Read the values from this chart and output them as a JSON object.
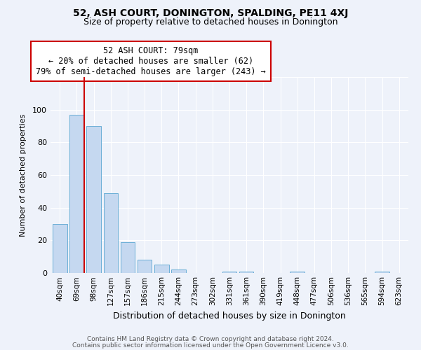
{
  "title": "52, ASH COURT, DONINGTON, SPALDING, PE11 4XJ",
  "subtitle": "Size of property relative to detached houses in Donington",
  "xlabel": "Distribution of detached houses by size in Donington",
  "ylabel": "Number of detached properties",
  "bar_labels": [
    "40sqm",
    "69sqm",
    "98sqm",
    "127sqm",
    "157sqm",
    "186sqm",
    "215sqm",
    "244sqm",
    "273sqm",
    "302sqm",
    "331sqm",
    "361sqm",
    "390sqm",
    "419sqm",
    "448sqm",
    "477sqm",
    "506sqm",
    "536sqm",
    "565sqm",
    "594sqm",
    "623sqm"
  ],
  "bar_values": [
    30,
    97,
    90,
    49,
    19,
    8,
    5,
    2,
    0,
    0,
    1,
    1,
    0,
    0,
    1,
    0,
    0,
    0,
    0,
    1,
    0
  ],
  "bar_color": "#c5d8f0",
  "bar_edge_color": "#6aaed6",
  "marker_line_color": "#cc0000",
  "annotation_title": "52 ASH COURT: 79sqm",
  "annotation_line1": "← 20% of detached houses are smaller (62)",
  "annotation_line2": "79% of semi-detached houses are larger (243) →",
  "annotation_box_color": "#ffffff",
  "annotation_box_edge": "#cc0000",
  "ylim": [
    0,
    120
  ],
  "yticks": [
    0,
    20,
    40,
    60,
    80,
    100,
    120
  ],
  "footer1": "Contains HM Land Registry data © Crown copyright and database right 2024.",
  "footer2": "Contains public sector information licensed under the Open Government Licence v3.0.",
  "bg_color": "#eef2fa",
  "title_fontsize": 10,
  "subtitle_fontsize": 9,
  "ylabel_fontsize": 8,
  "xlabel_fontsize": 9
}
